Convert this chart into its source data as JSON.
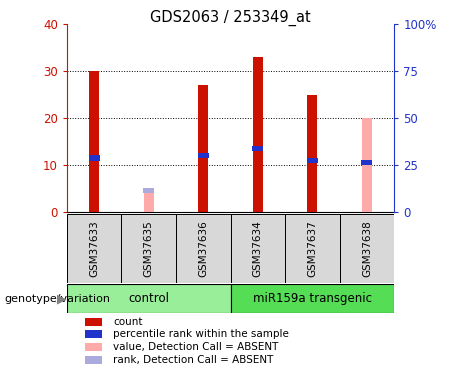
{
  "title": "GDS2063 / 253349_at",
  "samples": [
    "GSM37633",
    "GSM37635",
    "GSM37636",
    "GSM37634",
    "GSM37637",
    "GSM37638"
  ],
  "count_values": [
    30,
    null,
    27,
    33,
    25,
    null
  ],
  "percentile_values": [
    11.5,
    null,
    12,
    13.5,
    11,
    10.5
  ],
  "absent_value_values": [
    null,
    4.2,
    null,
    null,
    null,
    20
  ],
  "absent_rank_values": [
    null,
    4.5,
    null,
    null,
    null,
    null
  ],
  "ylim_left": [
    0,
    40
  ],
  "ylim_right": [
    0,
    100
  ],
  "yticks_left": [
    0,
    10,
    20,
    30,
    40
  ],
  "yticks_right": [
    0,
    25,
    50,
    75,
    100
  ],
  "yticklabels_right": [
    "0",
    "25",
    "50",
    "75",
    "100%"
  ],
  "count_color": "#cc1100",
  "percentile_color": "#2233cc",
  "absent_value_color": "#ffaaaa",
  "absent_rank_color": "#aaaadd",
  "control_color": "#99ee99",
  "transgenic_color": "#55dd55",
  "group_label": "genotype/variation",
  "bar_width": 0.18,
  "background_color": "#ffffff",
  "plot_bg_color": "#ffffff",
  "legend_items": [
    [
      "#cc1100",
      "count"
    ],
    [
      "#2233cc",
      "percentile rank within the sample"
    ],
    [
      "#ffaaaa",
      "value, Detection Call = ABSENT"
    ],
    [
      "#aaaadd",
      "rank, Detection Call = ABSENT"
    ]
  ]
}
